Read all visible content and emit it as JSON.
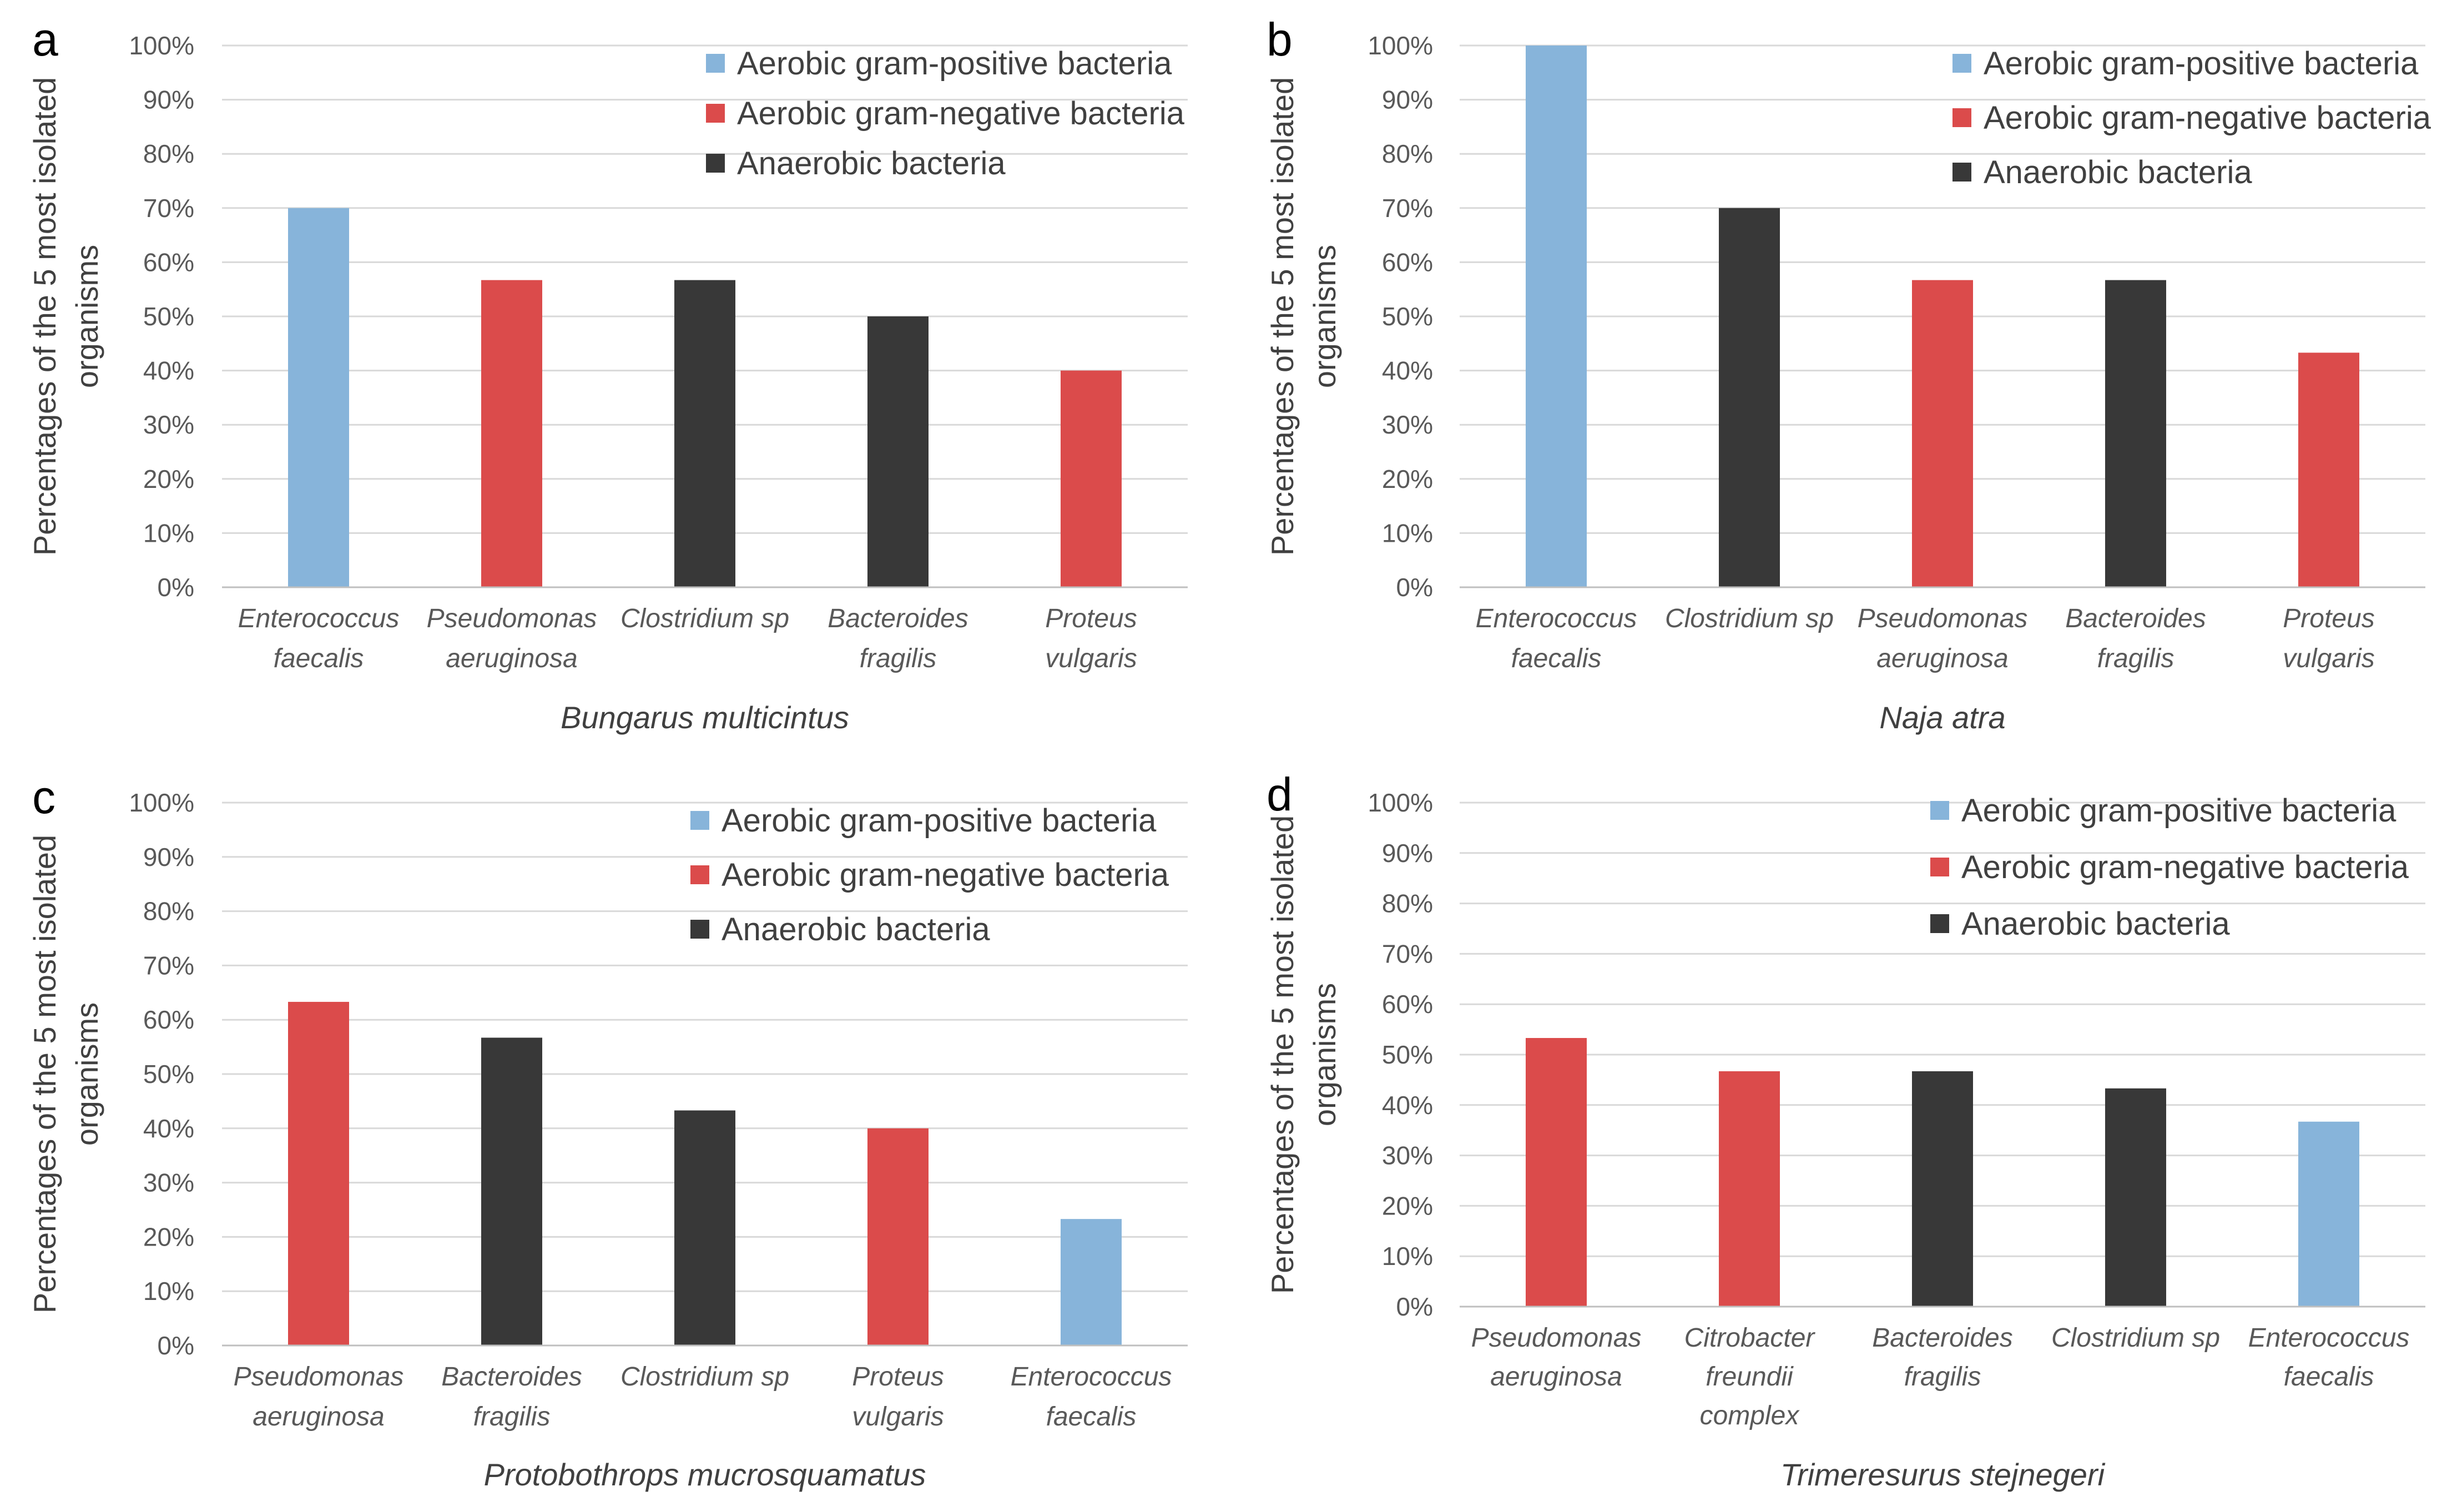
{
  "colors": {
    "gram_positive": "#87b4da",
    "gram_negative": "#db4b4b",
    "anaerobic": "#383838"
  },
  "chart_data": [
    {
      "panel": "a",
      "type": "bar",
      "ylabel": [
        "Percentages of the 5 most  isolated",
        "organisms"
      ],
      "xlabel": "Bungarus multicintus",
      "ylim": [
        0,
        100
      ],
      "yticks": [
        "0%",
        "10%",
        "20%",
        "30%",
        "40%",
        "50%",
        "60%",
        "70%",
        "80%",
        "90%",
        "100%"
      ],
      "legend": [
        "Aerobic gram-positive bacteria",
        "Aerobic gram-negative bacteria",
        "Anaerobic bacteria"
      ],
      "categories": [
        [
          "Enterococcus",
          "faecalis"
        ],
        [
          "Pseudomonas",
          "aeruginosa"
        ],
        [
          "Clostridium sp"
        ],
        [
          "Bacteroides",
          "fragilis"
        ],
        [
          "Proteus",
          "vulgaris"
        ]
      ],
      "values": [
        70,
        56.7,
        56.7,
        50,
        40
      ],
      "groups": [
        "gram_positive",
        "gram_negative",
        "anaerobic",
        "anaerobic",
        "gram_negative"
      ]
    },
    {
      "panel": "b",
      "type": "bar",
      "ylabel": [
        "Percentages of the 5 most  isolated",
        "organisms"
      ],
      "xlabel": "Naja atra",
      "ylim": [
        0,
        100
      ],
      "yticks": [
        "0%",
        "10%",
        "20%",
        "30%",
        "40%",
        "50%",
        "60%",
        "70%",
        "80%",
        "90%",
        "100%"
      ],
      "legend": [
        "Aerobic gram-positive bacteria",
        "Aerobic gram-negative bacteria",
        "Anaerobic bacteria"
      ],
      "categories": [
        [
          "Enterococcus",
          "faecalis"
        ],
        [
          "Clostridium sp"
        ],
        [
          "Pseudomonas",
          "aeruginosa"
        ],
        [
          "Bacteroides",
          "fragilis"
        ],
        [
          "Proteus",
          "vulgaris"
        ]
      ],
      "values": [
        100,
        70,
        56.7,
        56.7,
        43.3
      ],
      "groups": [
        "gram_positive",
        "anaerobic",
        "gram_negative",
        "anaerobic",
        "gram_negative"
      ]
    },
    {
      "panel": "c",
      "type": "bar",
      "ylabel": [
        "Percentages of the 5 most  isolated",
        "organisms"
      ],
      "xlabel": "Protobothrops mucrosquamatus",
      "ylim": [
        0,
        100
      ],
      "yticks": [
        "0%",
        "10%",
        "20%",
        "30%",
        "40%",
        "50%",
        "60%",
        "70%",
        "80%",
        "90%",
        "100%"
      ],
      "legend": [
        "Aerobic gram-positive bacteria",
        "Aerobic gram-negative bacteria",
        "Anaerobic bacteria"
      ],
      "categories": [
        [
          "Pseudomonas",
          "aeruginosa"
        ],
        [
          "Bacteroides",
          "fragilis"
        ],
        [
          "Clostridium sp"
        ],
        [
          "Proteus",
          "vulgaris"
        ],
        [
          "Enterococcus",
          "faecalis"
        ]
      ],
      "values": [
        63.3,
        56.7,
        43.3,
        40,
        23.3
      ],
      "groups": [
        "gram_negative",
        "anaerobic",
        "anaerobic",
        "gram_negative",
        "gram_positive"
      ]
    },
    {
      "panel": "d",
      "type": "bar",
      "ylabel": [
        "Percentages of the 5 most  isolated",
        "organisms"
      ],
      "xlabel": "Trimeresurus stejnegeri",
      "ylim": [
        0,
        100
      ],
      "yticks": [
        "0%",
        "10%",
        "20%",
        "30%",
        "40%",
        "50%",
        "60%",
        "70%",
        "80%",
        "90%",
        "100%"
      ],
      "legend": [
        "Aerobic gram-positive bacteria",
        "Aerobic gram-negative bacteria",
        "Anaerobic bacteria"
      ],
      "categories": [
        [
          "Pseudomonas",
          "aeruginosa"
        ],
        [
          "Citrobacter",
          "freundii",
          "complex"
        ],
        [
          "Bacteroides",
          "fragilis"
        ],
        [
          "Clostridium sp"
        ],
        [
          "Enterococcus",
          "faecalis"
        ]
      ],
      "values": [
        53.3,
        46.7,
        46.7,
        43.3,
        36.7
      ],
      "groups": [
        "gram_negative",
        "gram_negative",
        "anaerobic",
        "anaerobic",
        "gram_positive"
      ]
    }
  ]
}
